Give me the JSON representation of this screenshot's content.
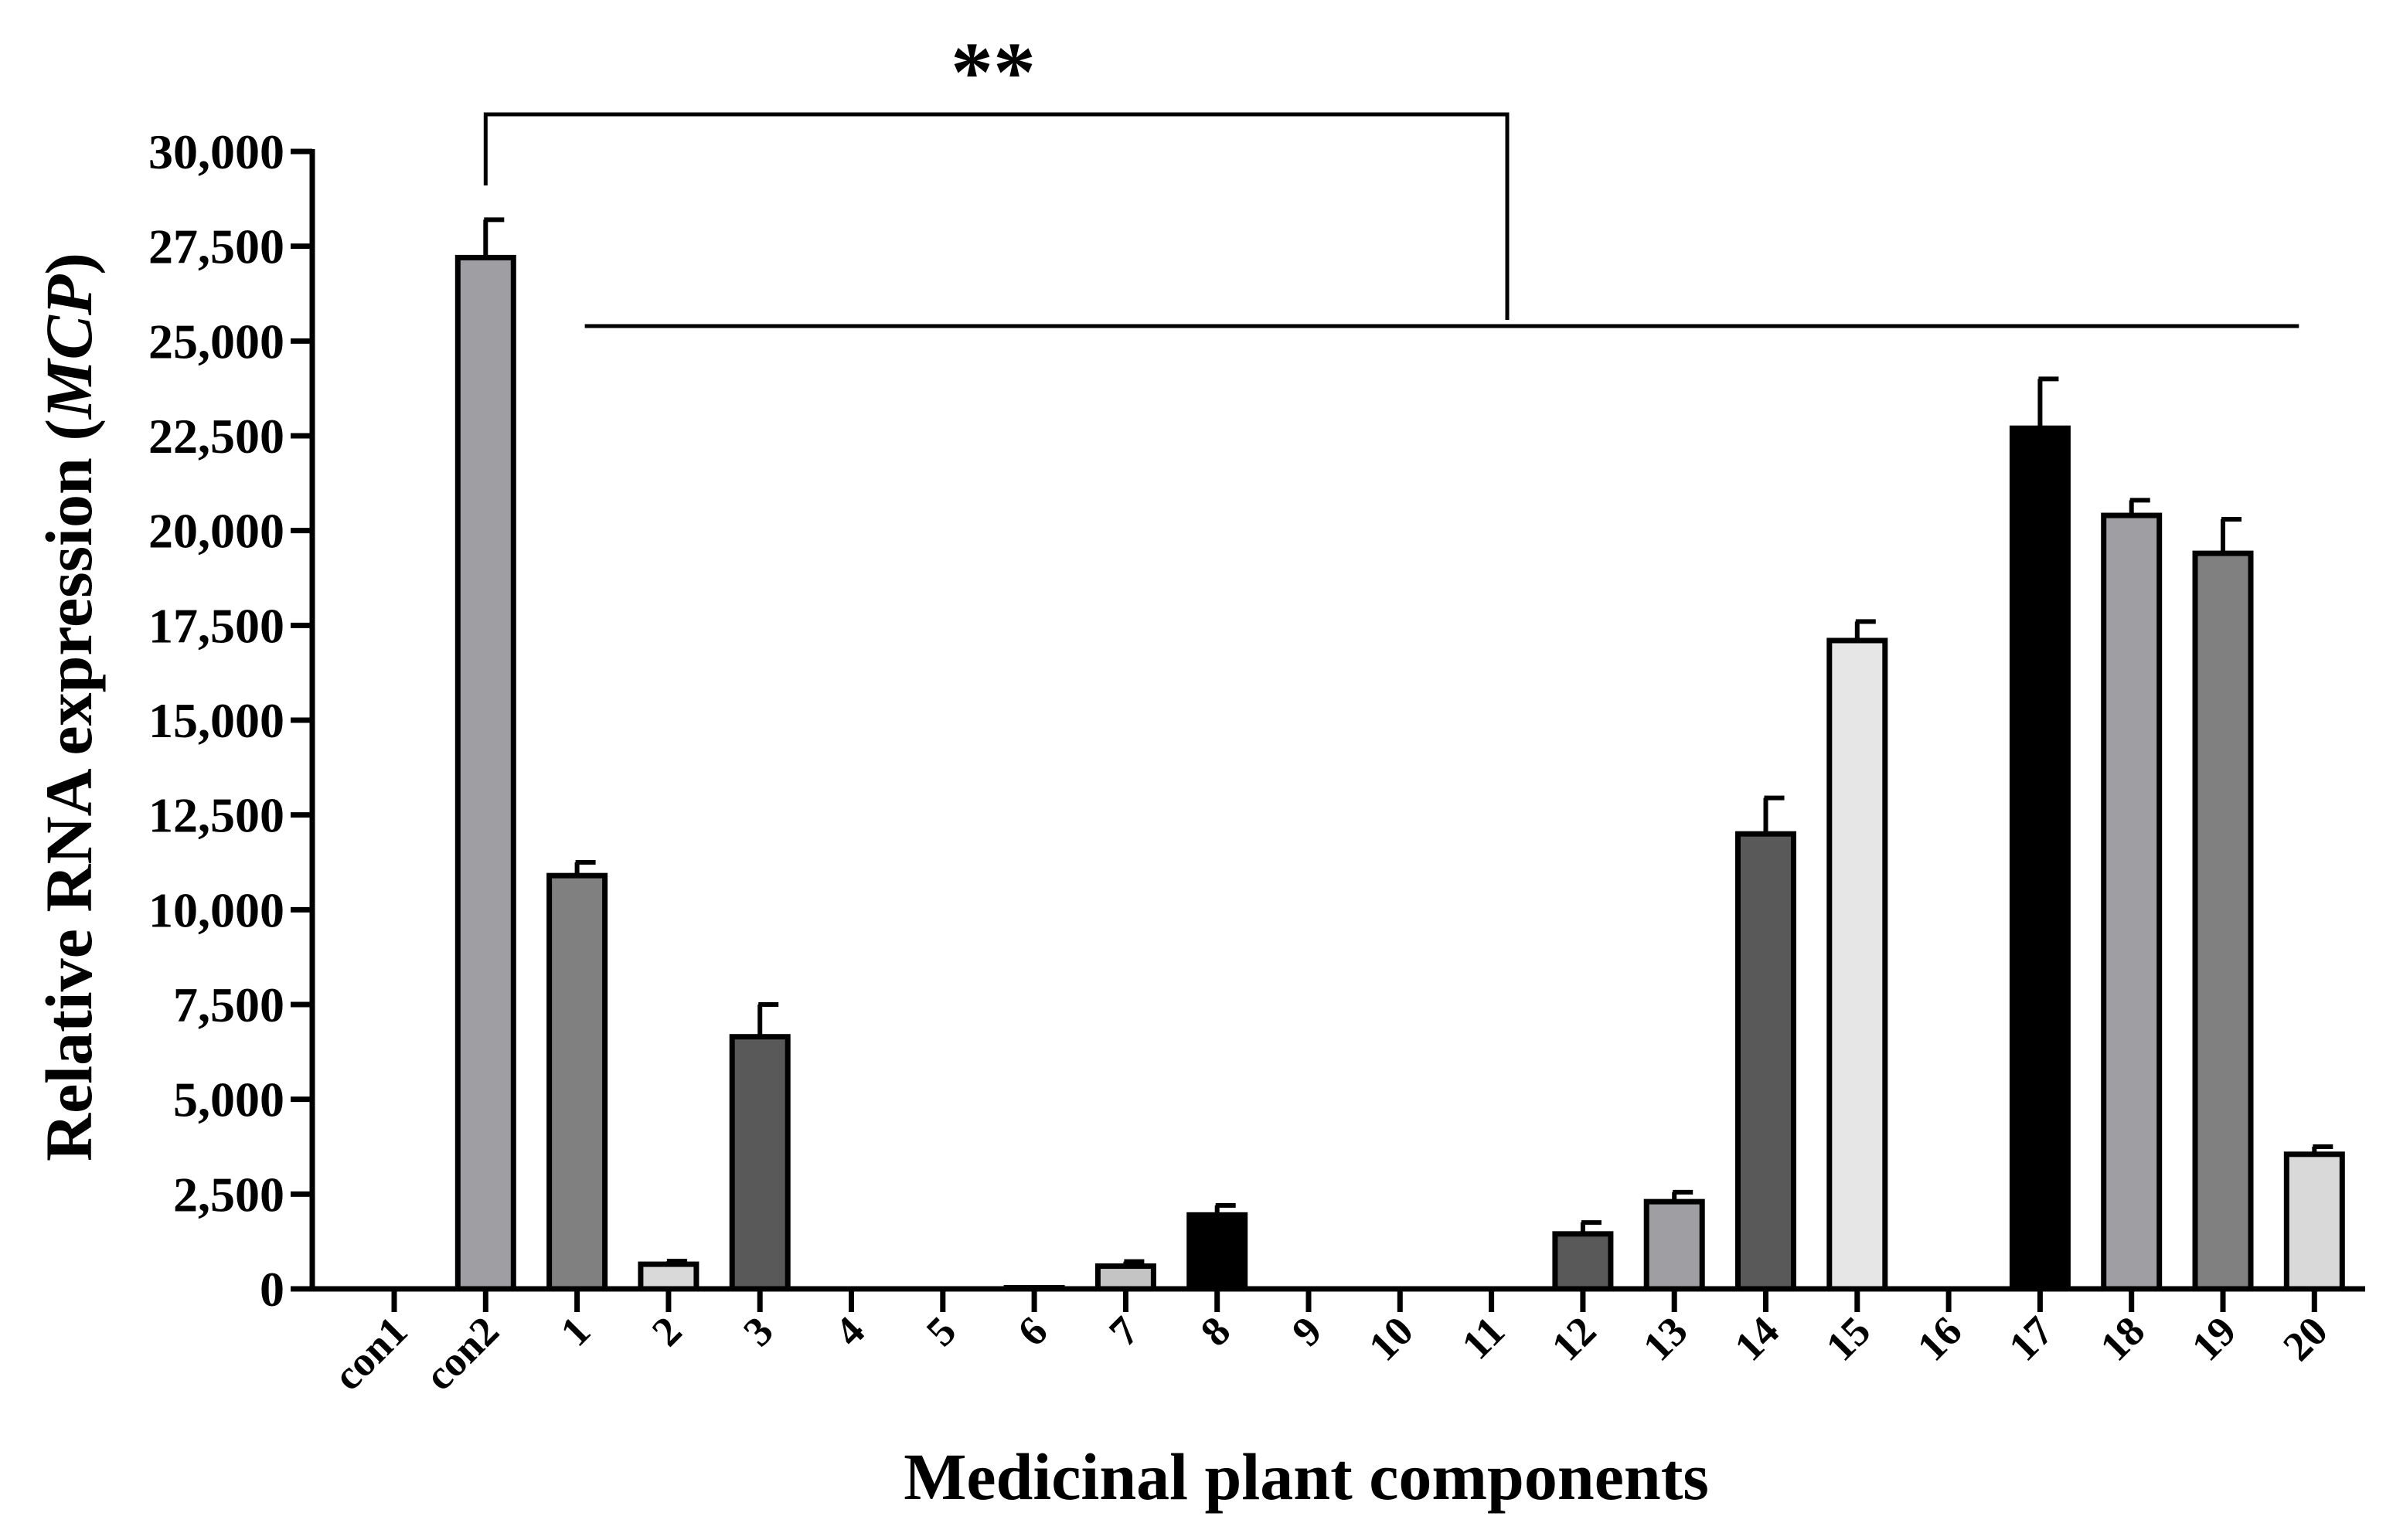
{
  "chart_data": {
    "type": "bar",
    "xlabel": "Medicinal plant components",
    "ylabel_main": "Relative RNA expression (",
    "ylabel_italic": "MCP",
    "ylabel_close": ")",
    "ylim": [
      0,
      30000
    ],
    "yticks": [
      0,
      2500,
      5000,
      7500,
      10000,
      12500,
      15000,
      17500,
      20000,
      22500,
      25000,
      27500,
      30000
    ],
    "ytick_labels": [
      "0",
      "2,500",
      "5,000",
      "7,500",
      "10,000",
      "12,500",
      "15,000",
      "17,500",
      "20,000",
      "22,500",
      "25,000",
      "27,500",
      "30,000"
    ],
    "grid": false,
    "legend": "none",
    "categories": [
      "con1",
      "con2",
      "1",
      "2",
      "3",
      "4",
      "5",
      "6",
      "7",
      "8",
      "9",
      "10",
      "11",
      "12",
      "13",
      "14",
      "15",
      "16",
      "17",
      "18",
      "19",
      "20"
    ],
    "values": [
      0,
      27200,
      10900,
      650,
      6650,
      0,
      0,
      30,
      600,
      1950,
      0,
      0,
      0,
      1450,
      2300,
      12000,
      17100,
      0,
      22700,
      20400,
      19400,
      3550
    ],
    "errors": [
      0,
      1000,
      350,
      80,
      850,
      0,
      0,
      0,
      120,
      250,
      0,
      0,
      0,
      300,
      250,
      950,
      500,
      0,
      1300,
      400,
      900,
      200
    ],
    "colors": [
      "#9e9ea3",
      "#9e9ea3",
      "#808080",
      "#d9d9d9",
      "#595959",
      "#808080",
      "#808080",
      "#808080",
      "#c4c4c4",
      "#000000",
      "#808080",
      "#808080",
      "#808080",
      "#595959",
      "#9e9ea3",
      "#595959",
      "#e6e6e6",
      "#808080",
      "#000000",
      "#9e9ea3",
      "#808080",
      "#d9d9d9"
    ],
    "annotation": {
      "text": "**",
      "from_category": "con2",
      "to_first": "1",
      "to_last": "20"
    }
  }
}
